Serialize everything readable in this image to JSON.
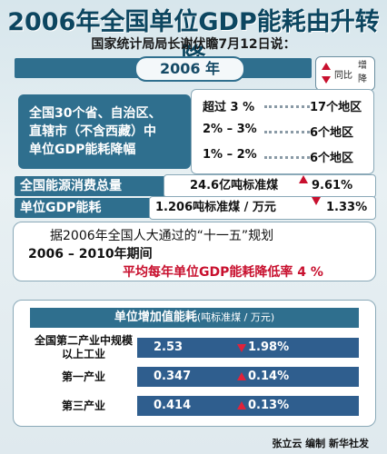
{
  "title": "2006年全国单位GDP能耗由升转降",
  "subtitle": "国家统计局局长谢伏瞻7月12日说：",
  "year": "2006 年",
  "legend": {
    "text1": "同比",
    "text2": "增降"
  },
  "provinces": {
    "line1": "全国30个省、自治区、",
    "line2": "直辖市（不含西藏）中",
    "line3": "单位GDP能耗降幅",
    "ranges": [
      {
        "label": "超过 3 %",
        "value": "17个地区"
      },
      {
        "label": "2% – 3%",
        "value": "6个地区"
      },
      {
        "label": "1% – 2%",
        "value": "6个地区"
      }
    ]
  },
  "energy": {
    "label": "全国能源消费总量",
    "value": "24.6亿吨标准煤",
    "change": "9.61%"
  },
  "unit_gdp": {
    "label": "单位GDP能耗",
    "value": "1.206吨标准煤 / 万元",
    "change": "1.33%"
  },
  "plan": {
    "line1": "据2006年全国人大通过的“十一五”规划",
    "line2": "2006 – 2010年期间",
    "line3": "平均每年单位GDP能耗降低率 4 %"
  },
  "panel": {
    "head": "单位增加值能耗",
    "unit": "(吨标准煤 / 万元)",
    "rows": [
      {
        "label": "全国第二产业中规模以上工业",
        "value": "2.53",
        "dir": "down",
        "change": "1.98%"
      },
      {
        "label": "第一产业",
        "value": "0.347",
        "dir": "up",
        "change": "0.14%"
      },
      {
        "label": "第三产业",
        "value": "0.414",
        "dir": "up",
        "change": "0.13%"
      }
    ]
  },
  "footer": "张立云 编制 新华社发"
}
